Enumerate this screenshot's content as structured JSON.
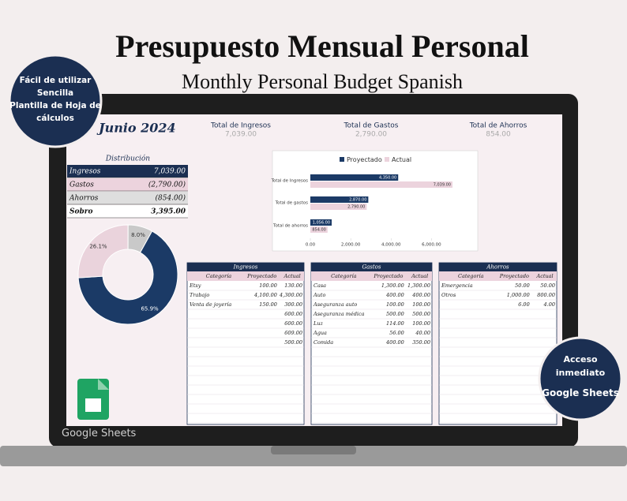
{
  "header": {
    "title": "Presupuesto Mensual Personal",
    "subtitle": "Monthly Personal Budget Spanish"
  },
  "badges": {
    "left": [
      "Fácil de utilizar",
      "Sencilla",
      "Plantilla de Hoja de",
      "cálculos"
    ],
    "right": [
      "Acceso",
      "inmediato",
      "Google Sheets"
    ]
  },
  "sheet": {
    "month": "Junio 2024",
    "totals": [
      {
        "label": "Total de Ingresos",
        "value": "7,039.00"
      },
      {
        "label": "Total de Gastos",
        "value": "2,790.00"
      },
      {
        "label": "Total de Ahorros",
        "value": "854.00"
      }
    ],
    "distribution": {
      "title": "Distribución",
      "rows": [
        {
          "label": "Ingresos",
          "value": "7,039.00"
        },
        {
          "label": "Gastos",
          "value": "(2,790.00)"
        },
        {
          "label": "Ahorros",
          "value": "(854.00)"
        },
        {
          "label": "Sobro",
          "value": "3,395.00"
        }
      ]
    },
    "bar_chart": {
      "type": "bar",
      "categories": [
        "Total de Ingresos",
        "Total de gastos",
        "Total de ahorros"
      ],
      "series": [
        {
          "name": "Proyectado",
          "color": "#1b3a66",
          "values": [
            4350,
            2870,
            1056
          ],
          "value_labels": [
            "4,350.00",
            "2,870.00",
            "1,056.00"
          ]
        },
        {
          "name": "Actual",
          "color": "#ecd3dd",
          "values": [
            7039,
            2790,
            854
          ],
          "value_labels": [
            "7,039.00",
            "2,790.00",
            "854.00"
          ]
        }
      ],
      "xlim": [
        0,
        7000
      ],
      "xticks": [
        {
          "value": 0,
          "label": "0.00"
        },
        {
          "value": 2000,
          "label": "2,000.00"
        },
        {
          "value": 4000,
          "label": "4,000.00"
        },
        {
          "value": 6000,
          "label": "6,000.00"
        }
      ]
    },
    "donut": {
      "type": "pie",
      "values": [
        65.9,
        26.1,
        8.0
      ],
      "value_labels": [
        "65.9%",
        "26.1%",
        "8.0%"
      ],
      "colors": [
        "#1b3a66",
        "#ead3dc",
        "#c9c9c9"
      ]
    },
    "tables": [
      {
        "title": "Ingresos",
        "columns": [
          "Categoría",
          "Proyectado",
          "Actual"
        ],
        "rows": [
          {
            "category": "Etsy",
            "projected": "100.00",
            "actual": "130.00"
          },
          {
            "category": "Trabajo",
            "projected": "4,100.00",
            "actual": "4,300.00"
          },
          {
            "category": "Venta de joyería",
            "projected": "150.00",
            "actual": "300.00"
          },
          {
            "actual": "600.00"
          },
          {
            "actual": "600.00"
          },
          {
            "actual": "609.00"
          },
          {
            "actual": "500.00"
          }
        ]
      },
      {
        "title": "Gastos",
        "columns": [
          "Categoría",
          "Proyectado",
          "Actual"
        ],
        "rows": [
          {
            "category": "Casa",
            "projected": "1,300.00",
            "actual": "1,300.00"
          },
          {
            "category": "Auto",
            "projected": "400.00",
            "actual": "400.00"
          },
          {
            "category": "Aseguranza auto",
            "projected": "100.00",
            "actual": "100.00"
          },
          {
            "category": "Aseguranza médica",
            "projected": "500.00",
            "actual": "500.00"
          },
          {
            "category": "Luz",
            "projected": "114.00",
            "actual": "100.00"
          },
          {
            "category": "Agua",
            "projected": "56.00",
            "actual": "40.00"
          },
          {
            "category": "Comida",
            "projected": "400.00",
            "actual": "350.00"
          }
        ]
      },
      {
        "title": "Ahorros",
        "columns": [
          "Categoría",
          "Proyectado",
          "Actual"
        ],
        "rows": [
          {
            "category": "Emergencia",
            "projected": "50.00",
            "actual": "50.00"
          },
          {
            "category": "Otros",
            "projected": "1,000.00",
            "actual": "800.00"
          },
          {
            "projected": "6.00",
            "actual": "4.00"
          }
        ]
      }
    ]
  },
  "footer": {
    "brand": "Google Sheets"
  }
}
